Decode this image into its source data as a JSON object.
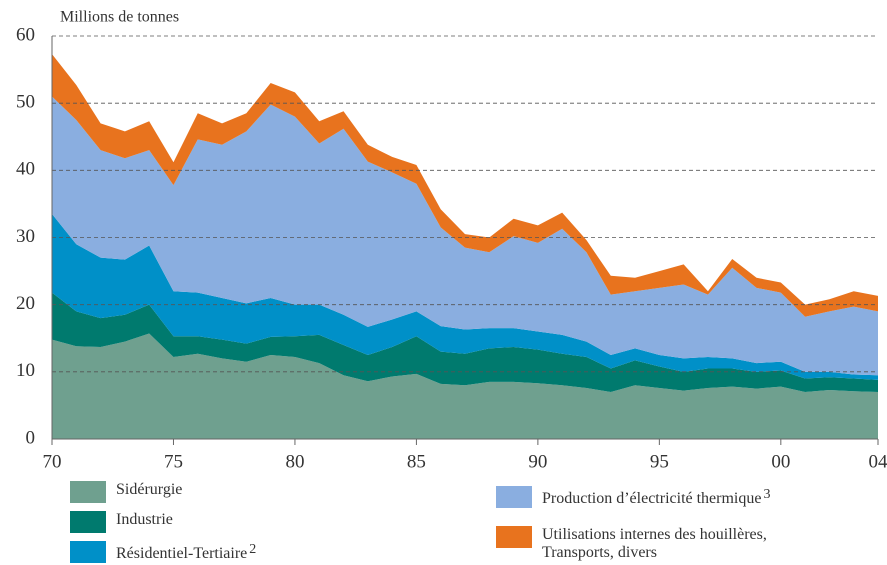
{
  "chart_data": {
    "type": "stacked_area",
    "ylabel": "Millions de tonnes",
    "x": [
      1970,
      1971,
      1972,
      1973,
      1974,
      1975,
      1976,
      1977,
      1978,
      1979,
      1980,
      1981,
      1982,
      1983,
      1984,
      1985,
      1986,
      1987,
      1988,
      1989,
      1990,
      1991,
      1992,
      1993,
      1994,
      1995,
      1996,
      1997,
      1998,
      1999,
      2000,
      2001,
      2002,
      2003,
      2004
    ],
    "xlim": [
      1970,
      2004
    ],
    "xticks": [
      {
        "value": 1970,
        "label": "70"
      },
      {
        "value": 1975,
        "label": "75"
      },
      {
        "value": 1980,
        "label": "80"
      },
      {
        "value": 1985,
        "label": "85"
      },
      {
        "value": 1990,
        "label": "90"
      },
      {
        "value": 1995,
        "label": "95"
      },
      {
        "value": 2000,
        "label": "00"
      },
      {
        "value": 2004,
        "label": "04"
      }
    ],
    "ylim": [
      0,
      60
    ],
    "yticks": [
      0,
      10,
      20,
      30,
      40,
      50,
      60
    ],
    "grid": true,
    "series": [
      {
        "name": "Sidérurgie",
        "color": "#6fa08f",
        "values": [
          14.8,
          13.8,
          13.7,
          14.5,
          15.7,
          12.2,
          12.7,
          12.0,
          11.5,
          12.5,
          12.2,
          11.3,
          9.5,
          8.6,
          9.3,
          9.7,
          8.2,
          8.0,
          8.5,
          8.5,
          8.3,
          8.0,
          7.6,
          7.0,
          8.0,
          7.6,
          7.2,
          7.6,
          7.8,
          7.5,
          7.8,
          7.0,
          7.3,
          7.1,
          7.0
        ]
      },
      {
        "name": "Industrie",
        "color": "#007a6e",
        "values": [
          7.0,
          5.2,
          4.3,
          4.0,
          4.3,
          3.1,
          2.6,
          2.8,
          2.7,
          2.7,
          3.1,
          4.2,
          4.5,
          3.9,
          4.4,
          5.6,
          4.8,
          4.7,
          5.0,
          5.2,
          5.0,
          4.7,
          4.6,
          3.5,
          3.7,
          3.2,
          2.8,
          2.9,
          2.7,
          2.5,
          2.4,
          2.0,
          1.9,
          1.9,
          1.8
        ]
      },
      {
        "name": "Résidentiel-Tertiaire",
        "footnote": "2",
        "color": "#0090c8",
        "values": [
          11.7,
          10.0,
          9.0,
          8.2,
          8.8,
          6.7,
          6.5,
          6.2,
          6.0,
          5.8,
          4.7,
          4.5,
          4.5,
          4.2,
          4.1,
          3.7,
          3.8,
          3.6,
          3.0,
          2.8,
          2.7,
          2.8,
          2.3,
          2.0,
          1.8,
          1.7,
          2.0,
          1.7,
          1.5,
          1.3,
          1.3,
          1.0,
          0.8,
          0.6,
          0.7
        ]
      },
      {
        "name": "Production d’électricité thermique",
        "footnote": "3",
        "color": "#8aaee0",
        "values": [
          17.5,
          18.5,
          16.0,
          15.1,
          14.2,
          15.8,
          22.8,
          22.8,
          25.6,
          28.8,
          28.0,
          24.0,
          27.7,
          24.6,
          21.9,
          19.0,
          14.7,
          12.2,
          11.3,
          13.7,
          13.2,
          15.8,
          13.3,
          9.0,
          8.5,
          10.0,
          11.0,
          9.3,
          13.5,
          11.2,
          10.3,
          8.2,
          9.0,
          10.1,
          9.5
        ]
      },
      {
        "name": "Utilisations internes des houillères, Transports, divers",
        "color": "#e8731e",
        "values": [
          6.3,
          5.2,
          4.0,
          4.0,
          4.3,
          3.4,
          3.9,
          3.2,
          2.7,
          3.2,
          3.6,
          3.3,
          2.6,
          2.5,
          2.3,
          2.8,
          2.7,
          2.0,
          2.2,
          2.6,
          2.6,
          2.4,
          1.8,
          2.8,
          2.0,
          2.5,
          3.0,
          0.5,
          1.3,
          1.5,
          1.5,
          1.8,
          1.8,
          2.3,
          2.3
        ]
      }
    ]
  }
}
